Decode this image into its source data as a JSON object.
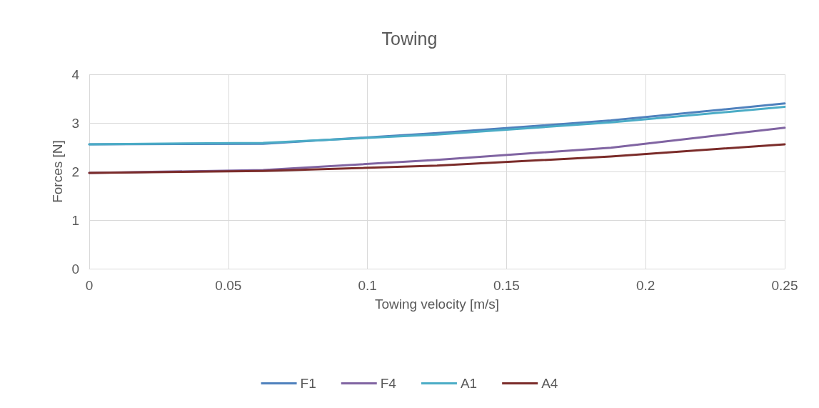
{
  "chart_data": {
    "type": "line",
    "title": "Towing",
    "xlabel": "Towing velocity [m/s]",
    "ylabel": "Forces [N]",
    "x": [
      0,
      0.0625,
      0.125,
      0.1875,
      0.25
    ],
    "series": [
      {
        "name": "F1",
        "color": "#4f81bd",
        "values": [
          2.56,
          2.57,
          2.79,
          3.05,
          3.4
        ]
      },
      {
        "name": "F4",
        "color": "#8064a2",
        "values": [
          1.97,
          2.03,
          2.24,
          2.49,
          2.9
        ]
      },
      {
        "name": "A1",
        "color": "#4bacc6",
        "values": [
          2.56,
          2.59,
          2.76,
          3.01,
          3.33
        ]
      },
      {
        "name": "A4",
        "color": "#7b2c2a",
        "values": [
          1.97,
          2.01,
          2.12,
          2.31,
          2.56
        ]
      }
    ],
    "xlim": [
      0,
      0.25
    ],
    "xticks": [
      0,
      0.05,
      0.1,
      0.15,
      0.2,
      0.25
    ],
    "ylim": [
      0,
      4
    ],
    "yticks": [
      0,
      1,
      2,
      3,
      4
    ],
    "grid": true,
    "legend": "bottom",
    "marker": "none",
    "line_style": "solid"
  }
}
